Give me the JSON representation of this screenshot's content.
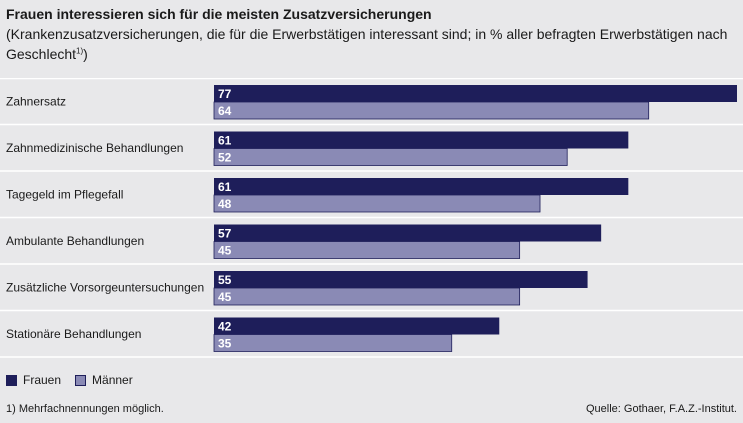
{
  "title": "Frauen interessieren sich für die meisten Zusatzversicherungen",
  "subtitle": "(Krankenzusatzversicherungen, die für die Erwerbstätigen interessant sind; in % aller befragten Erwerbstätigen nach Geschlecht",
  "subtitle_sup": "1)",
  "subtitle_end": ")",
  "footnote": "1)  Mehrfachnennungen möglich.",
  "source": "Quelle: Gothaer, F.A.Z.-Institut.",
  "colors": {
    "frauen": "#1e1e5a",
    "maenner": "#8a8ab5",
    "grid": "#ffffff"
  },
  "chart_data": {
    "type": "bar",
    "orientation": "horizontal",
    "categories": [
      "Zahnersatz",
      "Zahnmedizinische Behandlungen",
      "Tagegeld im Pflegefall",
      "Ambulante Behandlungen",
      "Zusätzliche Vorsorgeuntersuchungen",
      "Stationäre Behandlungen"
    ],
    "series": [
      {
        "name": "Frauen",
        "values": [
          77,
          61,
          61,
          57,
          55,
          42
        ]
      },
      {
        "name": "Männer",
        "values": [
          64,
          52,
          48,
          45,
          45,
          35
        ]
      }
    ],
    "xlim": [
      0,
      77
    ],
    "legend": "bottom-left"
  }
}
